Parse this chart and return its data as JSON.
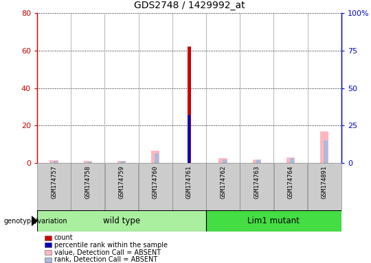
{
  "title": "GDS2748 / 1429992_at",
  "samples": [
    "GSM174757",
    "GSM174758",
    "GSM174759",
    "GSM174760",
    "GSM174761",
    "GSM174762",
    "GSM174763",
    "GSM174764",
    "GSM174891"
  ],
  "wt_indices": [
    0,
    1,
    2,
    3,
    4
  ],
  "lm_indices": [
    5,
    6,
    7,
    8
  ],
  "wt_label": "wild type",
  "lm_label": "Lim1 mutant",
  "wt_color": "#AAEEA0",
  "lm_color": "#44DD44",
  "count": [
    0,
    0,
    0,
    0,
    62,
    0,
    0,
    0,
    0
  ],
  "percentile_rank": [
    0,
    0,
    0,
    0,
    32,
    0,
    0,
    0,
    0
  ],
  "value_absent": [
    1.5,
    1.0,
    1.2,
    6.5,
    0,
    2.5,
    2.0,
    3.0,
    17.0
  ],
  "rank_absent": [
    1.2,
    0.8,
    1.0,
    5.0,
    0,
    2.0,
    1.8,
    2.5,
    12.0
  ],
  "ylim_left": [
    0,
    80
  ],
  "ylim_right": [
    0,
    100
  ],
  "yticks_left": [
    0,
    20,
    40,
    60,
    80
  ],
  "ytick_labels_left": [
    "0",
    "20",
    "40",
    "60",
    "80"
  ],
  "yticks_right": [
    0,
    25,
    50,
    75,
    100
  ],
  "ytick_labels_right": [
    "0",
    "25",
    "50",
    "75",
    "100%"
  ],
  "left_axis_color": "#CC0000",
  "right_axis_color": "#0000CC",
  "background_color": "#FFFFFF",
  "sample_box_color": "#CCCCCC",
  "legend_items": [
    {
      "label": "count",
      "color": "#CC0000"
    },
    {
      "label": "percentile rank within the sample",
      "color": "#0000BB"
    },
    {
      "label": "value, Detection Call = ABSENT",
      "color": "#FFB6C1"
    },
    {
      "label": "rank, Detection Call = ABSENT",
      "color": "#AABBDD"
    }
  ],
  "genotype_label": "genotype/variation"
}
